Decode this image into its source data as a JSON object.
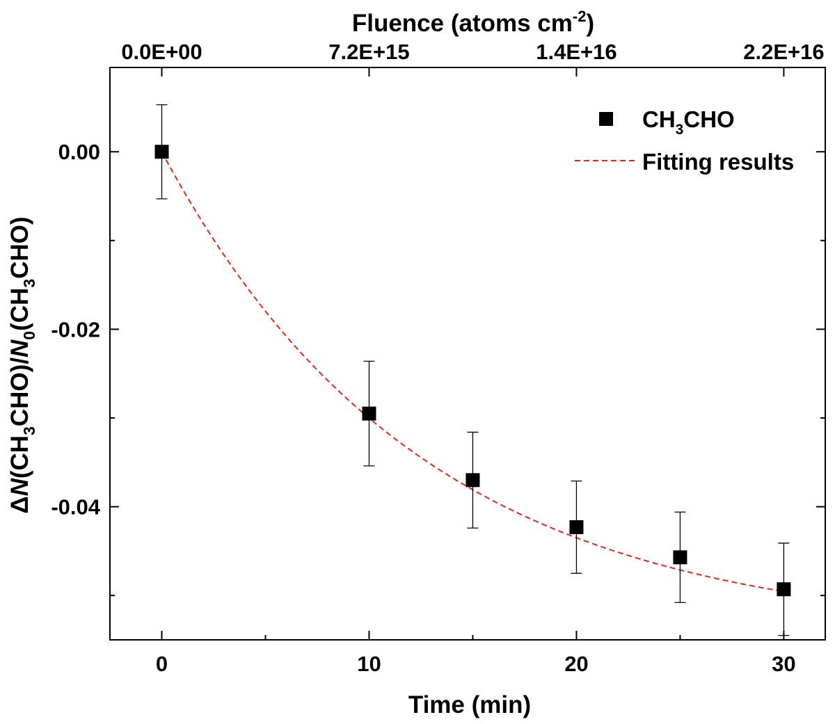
{
  "chart_data": {
    "type": "scatter",
    "xlabel": "Time (min)",
    "top_axis": {
      "title_main": "Fluence (atoms cm",
      "title_sup": "-2",
      "title_end": ")",
      "ticks": [
        {
          "time": 0,
          "label": "0.0E+00"
        },
        {
          "time": 10,
          "label": "7.2E+15"
        },
        {
          "time": 20,
          "label": "1.4E+16"
        },
        {
          "time": 30,
          "label": "2.2E+16"
        }
      ]
    },
    "ylabel_parts": [
      {
        "text": "Δ",
        "style": "normal"
      },
      {
        "text": "N",
        "style": "italic"
      },
      {
        "text": "(CH",
        "style": "normal"
      },
      {
        "text": "3",
        "style": "sub"
      },
      {
        "text": "CHO)/",
        "style": "normal"
      },
      {
        "text": "N",
        "style": "italic"
      },
      {
        "text": "0",
        "style": "sub"
      },
      {
        "text": "(CH",
        "style": "normal"
      },
      {
        "text": "3",
        "style": "sub"
      },
      {
        "text": "CHO)",
        "style": "normal"
      }
    ],
    "xlim": [
      -2.5,
      32
    ],
    "ylim": [
      -0.055,
      0.0095
    ],
    "x_ticks": [
      0,
      10,
      20,
      30
    ],
    "x_tick_labels": [
      "0",
      "10",
      "20",
      "30"
    ],
    "x_minor_ticks": [
      5,
      15,
      25
    ],
    "y_ticks": [
      0,
      -0.02,
      -0.04
    ],
    "y_tick_labels": [
      "0.00",
      "-0.02",
      "-0.04"
    ],
    "y_minor_ticks": [
      -0.01,
      -0.03,
      -0.05
    ],
    "series": [
      {
        "name": "CH3CHO",
        "legend_main": "CH",
        "legend_sub": "3",
        "legend_end": "CHO",
        "marker": "square",
        "color": "#000000",
        "x": [
          0,
          10,
          15,
          20,
          25,
          30
        ],
        "y": [
          0.0,
          -0.0295,
          -0.037,
          -0.0423,
          -0.0457,
          -0.0493
        ],
        "error": [
          0.0053,
          0.0059,
          0.0054,
          0.0052,
          0.0051,
          0.0052
        ]
      }
    ],
    "fit": {
      "name": "Fitting results",
      "color": "#e8221b",
      "style": "dashed",
      "model": "A*(exp(-t/tau)-1)",
      "A": 0.0545,
      "tau": 12.5
    },
    "legend_position": "top-right"
  }
}
